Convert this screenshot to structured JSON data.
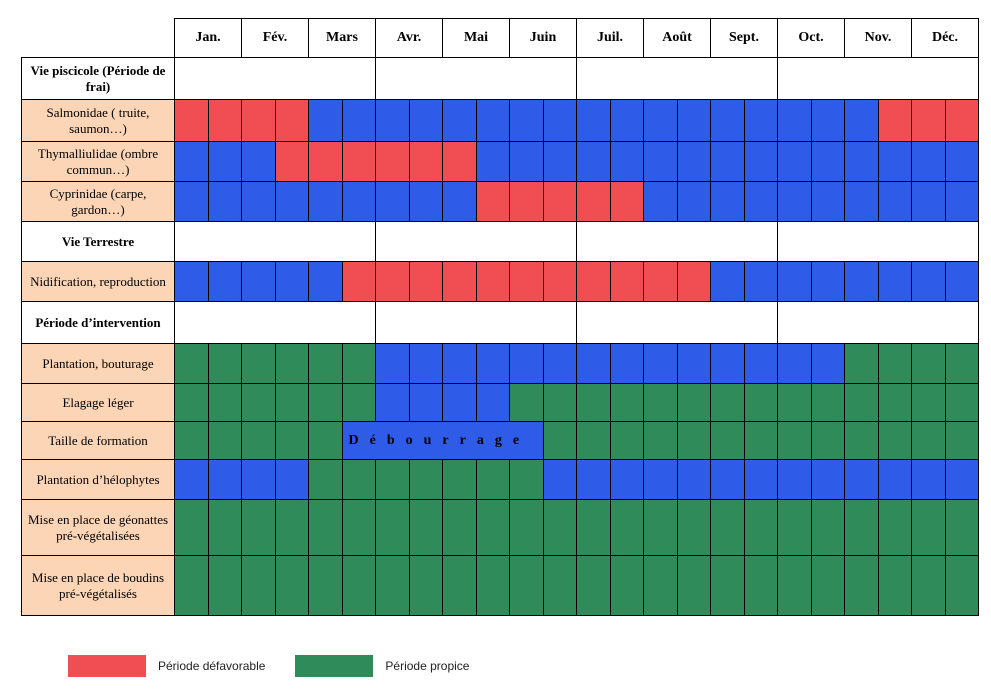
{
  "months": [
    "Jan.",
    "Fév.",
    "Mars",
    "Avr.",
    "Mai",
    "Juin",
    "Juil.",
    "Août",
    "Sept.",
    "Oct.",
    "Nov.",
    "Déc."
  ],
  "colors": {
    "r": "#f04e52",
    "b": "#2e5ce8",
    "g": "#2f8c5a",
    "label_bg": "#fbd5b5"
  },
  "rows": [
    {
      "type": "header",
      "label": "Vie piscicole (Période de frai)",
      "h": 42
    },
    {
      "type": "data",
      "label": "Salmonidae ( truite, saumon…)",
      "h": 42,
      "cells": "rrrrbbbbbbbbbbbbbbbbbrrr"
    },
    {
      "type": "data",
      "label": "Thymalliulidae (ombre commun…)",
      "h": 40,
      "cells": "bbbrrrrrrbbbbbbbbbbbbbbb"
    },
    {
      "type": "data",
      "label": "Cyprinidae (carpe, gardon…)",
      "h": 40,
      "cells": "bbbbbbbbbrrrrrbbbbbbbbbb"
    },
    {
      "type": "header",
      "label": "Vie Terrestre",
      "h": 40
    },
    {
      "type": "data",
      "label": "Nidification, reproduction",
      "h": 40,
      "cells": "bbbbbrrrrrrrrrrrbbbbbbbb"
    },
    {
      "type": "header",
      "label": "Période d’intervention",
      "h": 42
    },
    {
      "type": "data",
      "label": "Plantation, bouturage",
      "h": 40,
      "cells": "ggggggbbbbbbbbbbbbbbgggg"
    },
    {
      "type": "data",
      "label": "Elagage léger",
      "h": 38,
      "cells": "ggggggbbbbgggggggggggggg"
    },
    {
      "type": "data",
      "label": "Taille de formation",
      "h": 38,
      "cells": "gggggbbbbbbggggggggggggg",
      "note": {
        "start": 5,
        "span": 6,
        "text": "Débourrage"
      }
    },
    {
      "type": "data",
      "label": "Plantation d’hélophytes",
      "h": 40,
      "cells": "bbbbgggggggbbbbbbbbbbbbb"
    },
    {
      "type": "data",
      "label": "Mise en place de géonattes pré-végétalisées",
      "h": 56,
      "cells": "gggggggggggggggggggggggg"
    },
    {
      "type": "data",
      "label": "Mise en place de boudins pré-végétalisés",
      "h": 60,
      "cells": "gggggggggggggggggggggggg"
    }
  ],
  "legend": {
    "unfavorable": "Période défavorable",
    "favorable": "Période propice"
  }
}
